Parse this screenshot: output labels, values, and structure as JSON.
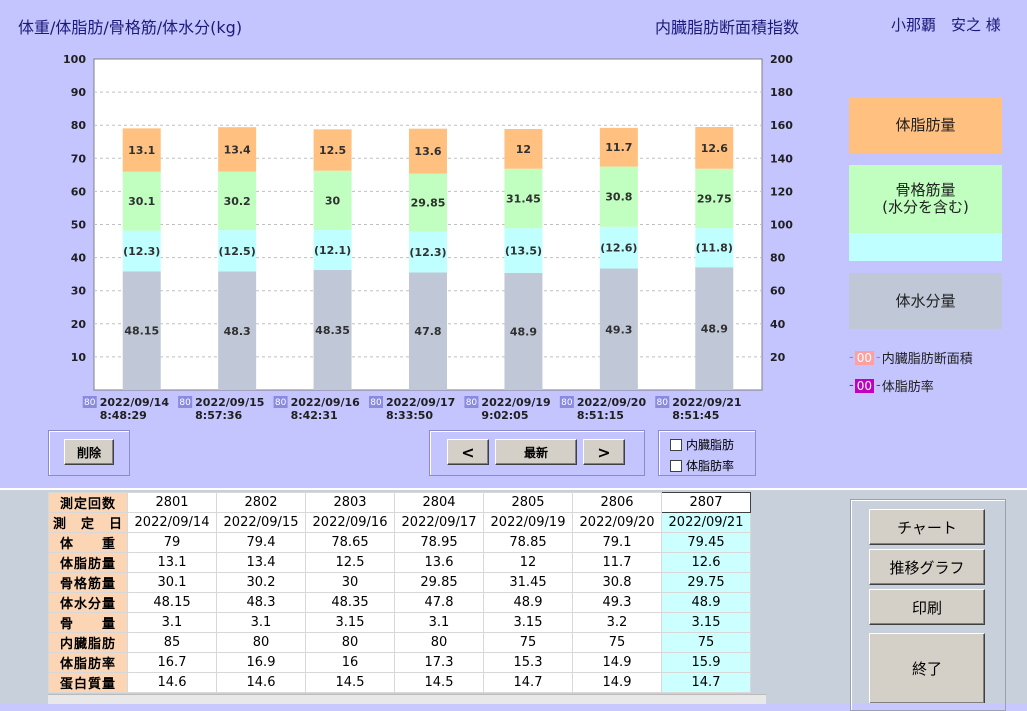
{
  "header": {
    "left_title": "体重/体脂肪/骨格筋/体水分(kg)",
    "center_title": "内臓脂肪断面積指数",
    "patient": "小那覇　安之 様"
  },
  "colors": {
    "fat": "#ffc080",
    "muscle": "#c0ffc0",
    "muscle_water": "#c0ffff",
    "water": "#c0c8d8",
    "visceral": "#ffa0a0",
    "fatrate": "#c000c0"
  },
  "chart_data": {
    "type": "bar",
    "stacked": true,
    "categories": [
      "2022/09/14\n8:48:29",
      "2022/09/15\n8:57:36",
      "2022/09/16\n8:42:31",
      "2022/09/17\n8:33:50",
      "2022/09/19\n9:02:05",
      "2022/09/20\n8:51:15",
      "2022/09/21\n8:51:45"
    ],
    "category_dates": [
      "2022/09/14",
      "2022/09/15",
      "2022/09/16",
      "2022/09/17",
      "2022/09/19",
      "2022/09/20",
      "2022/09/21"
    ],
    "category_times": [
      "8:48:29",
      "8:57:36",
      "8:42:31",
      "8:33:50",
      "9:02:05",
      "8:51:15",
      "8:51:45"
    ],
    "category_tags": [
      "80",
      "80",
      "80",
      "80",
      "80",
      "80",
      "80"
    ],
    "series": [
      {
        "name": "体水分量",
        "values": [
          48.15,
          48.3,
          48.35,
          47.8,
          48.9,
          49.3,
          48.9
        ],
        "labels": [
          "48.15",
          "48.3",
          "48.35",
          "47.8",
          "48.9",
          "49.3",
          "48.9"
        ]
      },
      {
        "name": "骨格筋量(水分を含む)",
        "values": [
          30.1,
          30.2,
          30,
          29.85,
          31.45,
          30.8,
          29.75
        ],
        "labels": [
          "30.1",
          "30.2",
          "30",
          "29.85",
          "31.45",
          "30.8",
          "29.75"
        ],
        "water_labels": [
          "(12.3)",
          "(12.5)",
          "(12.1)",
          "(12.3)",
          "(13.5)",
          "(12.6)",
          "(11.8)"
        ],
        "water_values": [
          12.3,
          12.5,
          12.1,
          12.3,
          13.5,
          12.6,
          11.8
        ]
      },
      {
        "name": "体脂肪量",
        "values": [
          13.1,
          13.4,
          12.5,
          13.6,
          12,
          11.7,
          12.6
        ],
        "labels": [
          "13.1",
          "13.4",
          "12.5",
          "13.6",
          "12",
          "11.7",
          "12.6"
        ]
      }
    ],
    "ylim": [
      0,
      100
    ],
    "y_ticks": [
      10,
      20,
      30,
      40,
      50,
      60,
      70,
      80,
      90,
      100
    ],
    "y2lim": [
      0,
      200
    ],
    "y2_ticks": [
      20,
      40,
      60,
      80,
      100,
      120,
      140,
      160,
      180,
      200
    ],
    "grid": true
  },
  "legend": {
    "fat": "体脂肪量",
    "muscle": "骨格筋量\n(水分を含む)",
    "water": "体水分量",
    "visceral_marker": "00",
    "visceral": "内臓脂肪断面積",
    "fatrate_marker": "00",
    "fatrate": "体脂肪率"
  },
  "controls": {
    "delete": "削除",
    "prev": "<",
    "latest": "最新",
    "next": ">",
    "chk_visceral": "内臓脂肪",
    "chk_fatrate": "体脂肪率"
  },
  "table": {
    "columns": [
      "2801",
      "2802",
      "2803",
      "2804",
      "2805",
      "2806",
      "2807"
    ],
    "rows": [
      {
        "label": "測定回数",
        "values": [
          "2801",
          "2802",
          "2803",
          "2804",
          "2805",
          "2806",
          "2807"
        ]
      },
      {
        "label": "測　定　日",
        "values": [
          "2022/09/14",
          "2022/09/15",
          "2022/09/16",
          "2022/09/17",
          "2022/09/19",
          "2022/09/20",
          "2022/09/21"
        ]
      },
      {
        "label": "体　　重",
        "values": [
          "79",
          "79.4",
          "78.65",
          "78.95",
          "78.85",
          "79.1",
          "79.45"
        ]
      },
      {
        "label": "体脂肪量",
        "values": [
          "13.1",
          "13.4",
          "12.5",
          "13.6",
          "12",
          "11.7",
          "12.6"
        ]
      },
      {
        "label": "骨格筋量",
        "values": [
          "30.1",
          "30.2",
          "30",
          "29.85",
          "31.45",
          "30.8",
          "29.75"
        ]
      },
      {
        "label": "体水分量",
        "values": [
          "48.15",
          "48.3",
          "48.35",
          "47.8",
          "48.9",
          "49.3",
          "48.9"
        ]
      },
      {
        "label": "骨　　量",
        "values": [
          "3.1",
          "3.1",
          "3.15",
          "3.1",
          "3.15",
          "3.2",
          "3.15"
        ]
      },
      {
        "label": "内臓脂肪",
        "values": [
          "85",
          "80",
          "80",
          "80",
          "75",
          "75",
          "75"
        ]
      },
      {
        "label": "体脂肪率",
        "values": [
          "16.7",
          "16.9",
          "16",
          "17.3",
          "15.3",
          "14.9",
          "15.9"
        ]
      },
      {
        "label": "蛋白質量",
        "values": [
          "14.6",
          "14.6",
          "14.5",
          "14.5",
          "14.7",
          "14.9",
          "14.7"
        ]
      }
    ]
  },
  "side_buttons": {
    "chart": "チャート",
    "trend": "推移グラフ",
    "print": "印刷",
    "exit": "終了"
  }
}
